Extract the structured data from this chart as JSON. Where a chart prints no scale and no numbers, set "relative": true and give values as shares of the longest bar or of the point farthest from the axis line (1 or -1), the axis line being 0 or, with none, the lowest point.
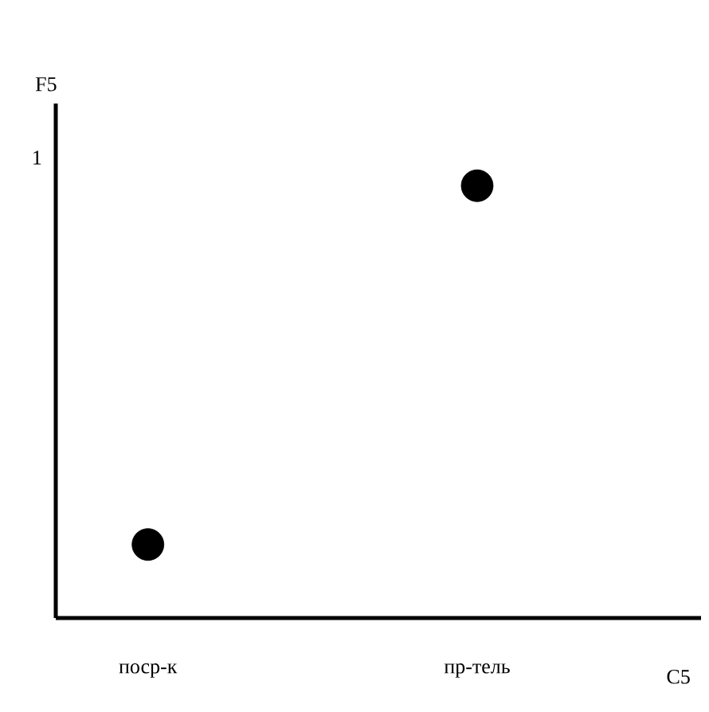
{
  "chart_data": {
    "type": "scatter",
    "xlabel": "C5",
    "ylabel": "F5",
    "categories": [
      "поср-к",
      "пр-тель"
    ],
    "values": [
      0.17,
      1
    ],
    "relative": true,
    "color": "#000000",
    "annotations": [
      "1"
    ]
  }
}
